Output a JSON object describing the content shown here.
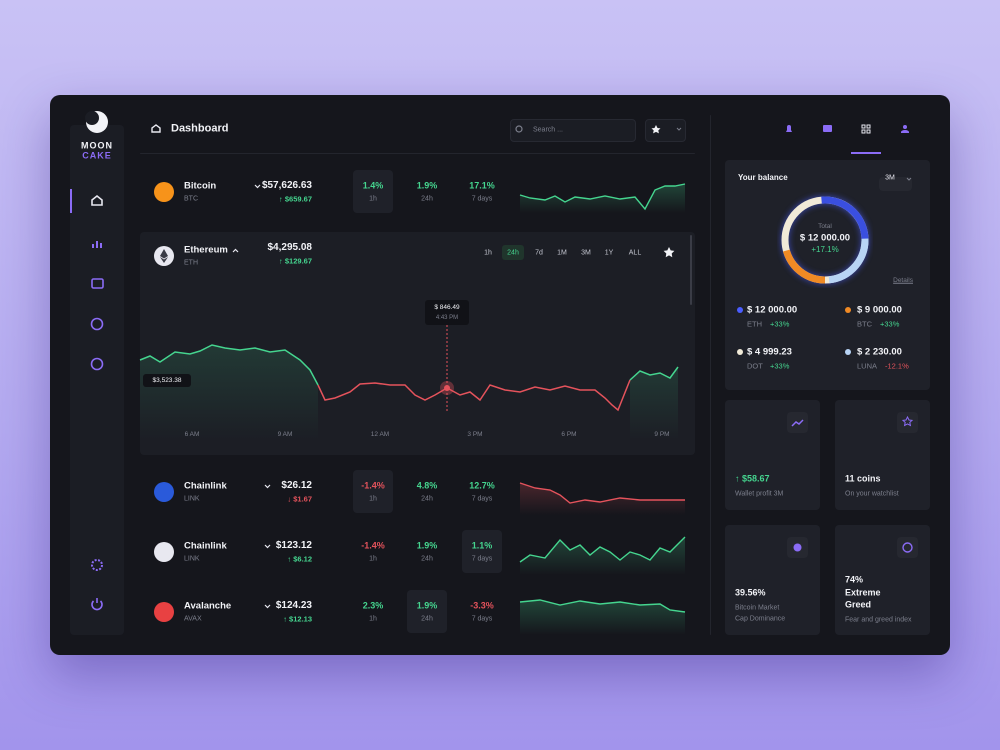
{
  "sidebar": {
    "logo": [
      "MOON",
      "CAKE"
    ]
  },
  "header": {
    "title": "Dashboard",
    "search_placeholder": "Search ..."
  },
  "coins": [
    {
      "name": "Bitcoin",
      "symbol": "BTC",
      "price": "$57,626.63",
      "change": "↑ $659.67",
      "stats": [
        {
          "value": "1.4%",
          "label": "1h"
        },
        {
          "value": "1.9%",
          "label": "24h"
        },
        {
          "value": "17.1%",
          "label": "7 days"
        }
      ]
    },
    {
      "name": "Chainlink",
      "symbol": "LINK",
      "price": "$26.12",
      "change": "↓ $1.67",
      "stats": [
        {
          "value": "-1.4%",
          "label": "1h"
        },
        {
          "value": "4.8%",
          "label": "24h"
        },
        {
          "value": "12.7%",
          "label": "7 days"
        }
      ]
    },
    {
      "name": "Chainlink",
      "symbol": "LINK",
      "price": "$123.12",
      "change": "↑ $6.12",
      "stats": [
        {
          "value": "-1.4%",
          "label": "1h"
        },
        {
          "value": "1.9%",
          "label": "24h"
        },
        {
          "value": "1.1%",
          "label": "7 days"
        }
      ]
    },
    {
      "name": "Avalanche",
      "symbol": "AVAX",
      "price": "$124.23",
      "change": "↑ $12.13",
      "stats": [
        {
          "value": "2.3%",
          "label": "1h"
        },
        {
          "value": "1.9%",
          "label": "24h"
        },
        {
          "value": "-3.3%",
          "label": "7 days"
        }
      ]
    }
  ],
  "ethereum": {
    "name": "Ethereum",
    "symbol": "ETH",
    "price": "$4,295.08",
    "change": "↑ $129.67",
    "ranges": [
      "1h",
      "24h",
      "7d",
      "1M",
      "3M",
      "1Y",
      "ALL"
    ],
    "tooltip": {
      "price": "$ 846.49",
      "time": "4:43 PM"
    },
    "current": "$3,523.38",
    "x_labels": [
      "6 AM",
      "9 AM",
      "12 AM",
      "3 PM",
      "6 PM",
      "9 PM"
    ]
  },
  "balance": {
    "title": "Your balance",
    "period": "3M",
    "total_label": "Total",
    "total": "$ 12 000.00",
    "change": "+17.1%",
    "details": "Details",
    "items": [
      {
        "amount": "$ 12 000.00",
        "coin": "ETH",
        "change": "+33%"
      },
      {
        "amount": "$ 9 000.00",
        "coin": "BTC",
        "change": "+33%"
      },
      {
        "amount": "$ 4 999.23",
        "coin": "DOT",
        "change": "+33%"
      },
      {
        "amount": "$ 2 230.00",
        "coin": "LUNA",
        "change": "-12.1%"
      }
    ]
  },
  "cards": [
    {
      "value": [
        "↑ $58.67"
      ],
      "label": [
        "Wallet profit 3M"
      ]
    },
    {
      "value": [
        "11 coins"
      ],
      "label": [
        "On your watchlist"
      ]
    },
    {
      "value": [
        "39.56%"
      ],
      "label": [
        "Bitcoin Market",
        "Cap Dominance"
      ]
    },
    {
      "value": [
        "74%",
        "Extreme",
        "Greed"
      ],
      "label": [
        "Fear and greed index"
      ]
    }
  ]
}
